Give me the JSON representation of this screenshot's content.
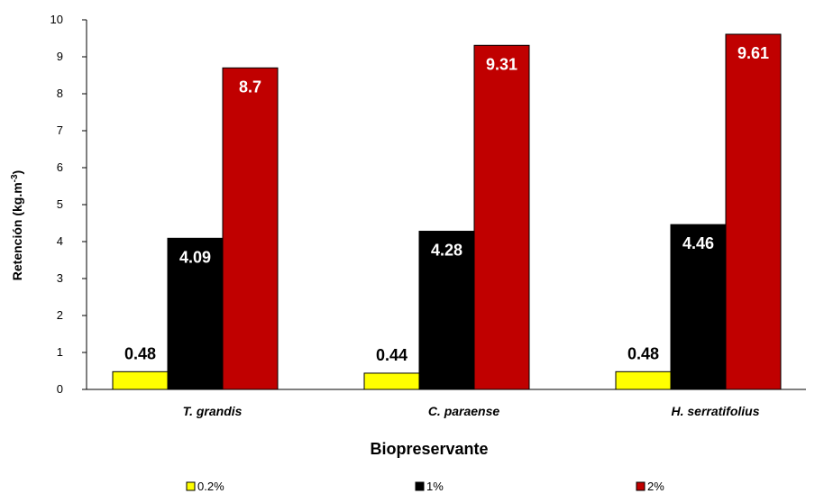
{
  "chart_data": {
    "type": "bar",
    "categories": [
      "T. grandis",
      "C. paraense",
      "H. serratifolius"
    ],
    "series": [
      {
        "name": "0.2%",
        "values": [
          0.48,
          0.44,
          0.48
        ],
        "color": "#ffff00",
        "labels": [
          "0.48",
          "0.44",
          "0.48"
        ]
      },
      {
        "name": "1%",
        "values": [
          4.09,
          4.28,
          4.46
        ],
        "color": "#000000",
        "labels": [
          "4.09",
          "4.28",
          "4.46"
        ]
      },
      {
        "name": "2%",
        "values": [
          8.7,
          9.31,
          9.61
        ],
        "color": "#c00000",
        "labels": [
          "8.7",
          "9.31",
          "9.61"
        ]
      }
    ],
    "xlabel": "Biopreservante",
    "ylabel": "Retención (kg.m",
    "ylabel_sup": "-3",
    "ylabel_close": ")",
    "ylim": [
      0,
      10
    ],
    "yticks": [
      0,
      1,
      2,
      3,
      4,
      5,
      6,
      7,
      8,
      9,
      10
    ],
    "grid": false,
    "legend_position": "bottom"
  }
}
